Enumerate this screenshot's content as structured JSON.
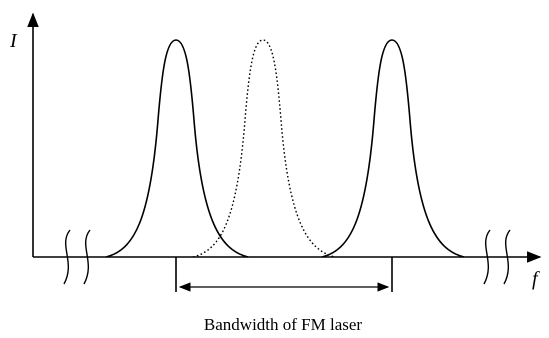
{
  "axes": {
    "y_label": "I",
    "x_label": "f"
  },
  "caption": "Bandwidth of FM laser",
  "modes": [
    {
      "name": "left-mode",
      "style": "solid"
    },
    {
      "name": "center-mode",
      "style": "dotted"
    },
    {
      "name": "right-mode",
      "style": "solid"
    }
  ],
  "colors": {
    "stroke": "#000000",
    "background": "#ffffff"
  }
}
